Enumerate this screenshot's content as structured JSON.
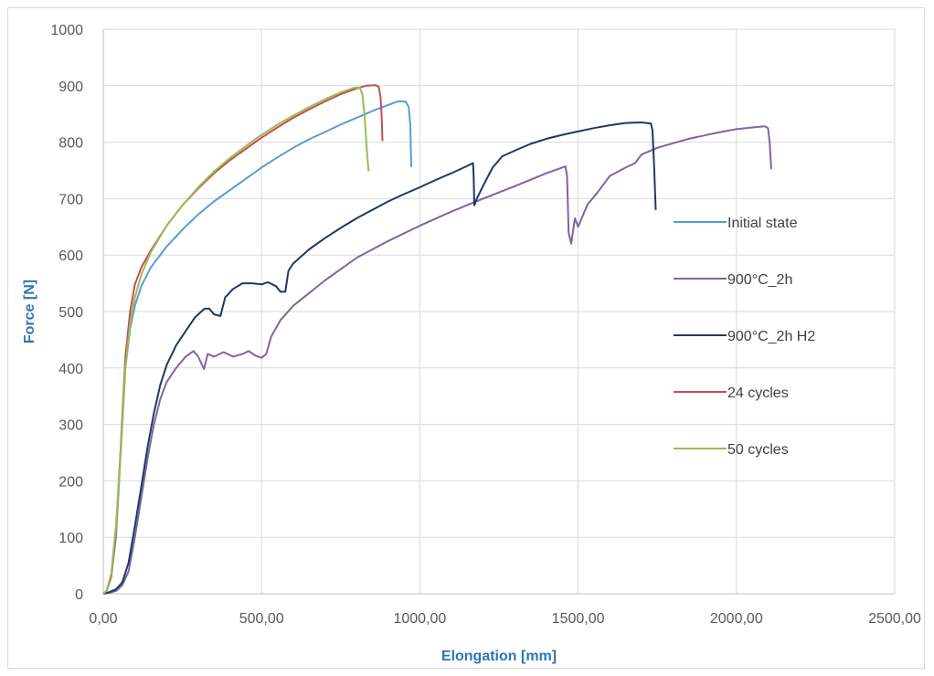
{
  "chart_data": {
    "type": "line",
    "xlabel": "Elongation [mm]",
    "ylabel": "Force [N]",
    "xlim": [
      0,
      2500
    ],
    "ylim": [
      0,
      1000
    ],
    "x_ticks": [
      0,
      500,
      1000,
      1500,
      2000,
      2500
    ],
    "x_tick_labels": [
      "0,00",
      "500,00",
      "1000,00",
      "1500,00",
      "2000,00",
      "2500,00"
    ],
    "y_ticks": [
      0,
      100,
      200,
      300,
      400,
      500,
      600,
      700,
      800,
      900,
      1000
    ],
    "y_tick_labels": [
      "0",
      "100",
      "200",
      "300",
      "400",
      "500",
      "600",
      "700",
      "800",
      "900",
      "1000"
    ],
    "grid": true,
    "legend_position": "right",
    "series": [
      {
        "name": "Initial state",
        "color": "#5b9bd5",
        "points": [
          [
            0,
            0
          ],
          [
            10,
            5
          ],
          [
            25,
            30
          ],
          [
            40,
            100
          ],
          [
            55,
            250
          ],
          [
            70,
            400
          ],
          [
            85,
            470
          ],
          [
            100,
            510
          ],
          [
            120,
            545
          ],
          [
            150,
            578
          ],
          [
            200,
            615
          ],
          [
            250,
            645
          ],
          [
            300,
            672
          ],
          [
            350,
            695
          ],
          [
            400,
            715
          ],
          [
            450,
            735
          ],
          [
            500,
            755
          ],
          [
            550,
            773
          ],
          [
            600,
            790
          ],
          [
            650,
            805
          ],
          [
            700,
            818
          ],
          [
            750,
            831
          ],
          [
            800,
            843
          ],
          [
            850,
            855
          ],
          [
            900,
            866
          ],
          [
            930,
            872
          ],
          [
            955,
            872
          ],
          [
            965,
            862
          ],
          [
            970,
            830
          ],
          [
            973,
            756
          ]
        ]
      },
      {
        "name": "900°C_2h",
        "color": "#8064a2",
        "points": [
          [
            0,
            0
          ],
          [
            20,
            2
          ],
          [
            40,
            5
          ],
          [
            60,
            15
          ],
          [
            80,
            40
          ],
          [
            100,
            100
          ],
          [
            120,
            170
          ],
          [
            140,
            240
          ],
          [
            160,
            300
          ],
          [
            180,
            345
          ],
          [
            200,
            375
          ],
          [
            230,
            400
          ],
          [
            260,
            420
          ],
          [
            285,
            430
          ],
          [
            300,
            420
          ],
          [
            318,
            398
          ],
          [
            330,
            425
          ],
          [
            350,
            420
          ],
          [
            380,
            428
          ],
          [
            410,
            420
          ],
          [
            440,
            425
          ],
          [
            460,
            430
          ],
          [
            480,
            422
          ],
          [
            500,
            418
          ],
          [
            515,
            425
          ],
          [
            530,
            455
          ],
          [
            560,
            485
          ],
          [
            600,
            510
          ],
          [
            700,
            555
          ],
          [
            800,
            595
          ],
          [
            900,
            625
          ],
          [
            1000,
            652
          ],
          [
            1100,
            677
          ],
          [
            1200,
            700
          ],
          [
            1300,
            722
          ],
          [
            1400,
            745
          ],
          [
            1460,
            757
          ],
          [
            1465,
            740
          ],
          [
            1470,
            640
          ],
          [
            1478,
            620
          ],
          [
            1490,
            665
          ],
          [
            1500,
            650
          ],
          [
            1530,
            690
          ],
          [
            1560,
            710
          ],
          [
            1600,
            740
          ],
          [
            1650,
            755
          ],
          [
            1680,
            763
          ],
          [
            1700,
            778
          ],
          [
            1750,
            790
          ],
          [
            1800,
            798
          ],
          [
            1850,
            806
          ],
          [
            1900,
            812
          ],
          [
            1950,
            818
          ],
          [
            2000,
            823
          ],
          [
            2050,
            826
          ],
          [
            2090,
            828
          ],
          [
            2100,
            825
          ],
          [
            2105,
            800
          ],
          [
            2110,
            752
          ]
        ]
      },
      {
        "name": "900°C_2h H2",
        "color": "#1f3864",
        "points": [
          [
            0,
            0
          ],
          [
            20,
            3
          ],
          [
            40,
            8
          ],
          [
            60,
            20
          ],
          [
            80,
            55
          ],
          [
            100,
            120
          ],
          [
            120,
            190
          ],
          [
            140,
            260
          ],
          [
            160,
            320
          ],
          [
            180,
            370
          ],
          [
            200,
            405
          ],
          [
            230,
            440
          ],
          [
            260,
            465
          ],
          [
            290,
            490
          ],
          [
            320,
            505
          ],
          [
            335,
            505
          ],
          [
            350,
            495
          ],
          [
            370,
            492
          ],
          [
            385,
            525
          ],
          [
            410,
            540
          ],
          [
            440,
            550
          ],
          [
            470,
            550
          ],
          [
            500,
            548
          ],
          [
            520,
            552
          ],
          [
            545,
            545
          ],
          [
            560,
            535
          ],
          [
            575,
            535
          ],
          [
            585,
            572
          ],
          [
            600,
            585
          ],
          [
            650,
            610
          ],
          [
            700,
            630
          ],
          [
            750,
            648
          ],
          [
            800,
            665
          ],
          [
            850,
            680
          ],
          [
            900,
            695
          ],
          [
            950,
            708
          ],
          [
            1000,
            720
          ],
          [
            1050,
            733
          ],
          [
            1100,
            745
          ],
          [
            1150,
            758
          ],
          [
            1168,
            763
          ],
          [
            1170,
            740
          ],
          [
            1172,
            688
          ],
          [
            1180,
            700
          ],
          [
            1200,
            723
          ],
          [
            1230,
            755
          ],
          [
            1260,
            775
          ],
          [
            1300,
            785
          ],
          [
            1350,
            797
          ],
          [
            1400,
            806
          ],
          [
            1450,
            813
          ],
          [
            1500,
            819
          ],
          [
            1550,
            825
          ],
          [
            1600,
            830
          ],
          [
            1650,
            834
          ],
          [
            1700,
            835
          ],
          [
            1730,
            833
          ],
          [
            1735,
            820
          ],
          [
            1740,
            760
          ],
          [
            1745,
            680
          ]
        ]
      },
      {
        "name": "24 cycles",
        "color": "#c0504d",
        "points": [
          [
            0,
            0
          ],
          [
            10,
            5
          ],
          [
            25,
            30
          ],
          [
            40,
            110
          ],
          [
            55,
            260
          ],
          [
            70,
            420
          ],
          [
            85,
            500
          ],
          [
            100,
            548
          ],
          [
            120,
            578
          ],
          [
            150,
            608
          ],
          [
            200,
            652
          ],
          [
            250,
            688
          ],
          [
            300,
            718
          ],
          [
            350,
            745
          ],
          [
            400,
            768
          ],
          [
            450,
            788
          ],
          [
            500,
            808
          ],
          [
            550,
            826
          ],
          [
            600,
            843
          ],
          [
            650,
            858
          ],
          [
            700,
            872
          ],
          [
            750,
            885
          ],
          [
            800,
            895
          ],
          [
            830,
            900
          ],
          [
            860,
            901
          ],
          [
            870,
            898
          ],
          [
            876,
            880
          ],
          [
            879,
            850
          ],
          [
            882,
            802
          ]
        ]
      },
      {
        "name": "50 cycles",
        "color": "#9bbb59",
        "points": [
          [
            0,
            0
          ],
          [
            10,
            5
          ],
          [
            25,
            35
          ],
          [
            40,
            120
          ],
          [
            55,
            250
          ],
          [
            70,
            400
          ],
          [
            85,
            480
          ],
          [
            100,
            525
          ],
          [
            120,
            565
          ],
          [
            150,
            605
          ],
          [
            200,
            652
          ],
          [
            250,
            688
          ],
          [
            300,
            720
          ],
          [
            350,
            748
          ],
          [
            400,
            772
          ],
          [
            450,
            793
          ],
          [
            500,
            813
          ],
          [
            550,
            831
          ],
          [
            600,
            847
          ],
          [
            650,
            862
          ],
          [
            700,
            876
          ],
          [
            750,
            888
          ],
          [
            790,
            896
          ],
          [
            810,
            897
          ],
          [
            818,
            885
          ],
          [
            825,
            850
          ],
          [
            832,
            790
          ],
          [
            838,
            748
          ]
        ]
      }
    ]
  }
}
